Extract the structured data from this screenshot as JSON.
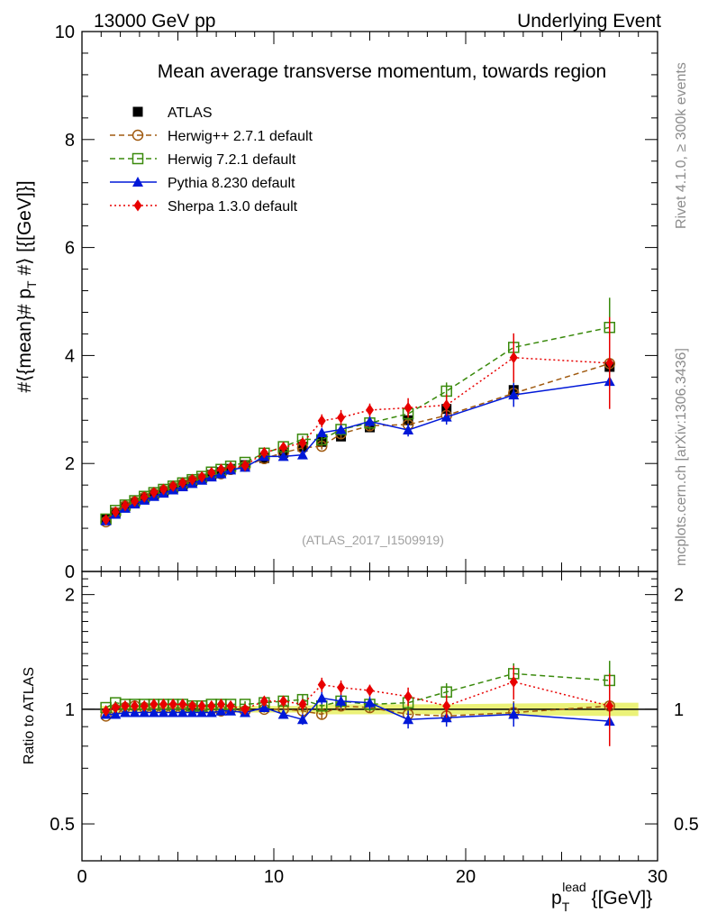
{
  "header": {
    "left": "13000 GeV pp",
    "right": "Underlying Event"
  },
  "side_text": {
    "rivet": "Rivet 4.1.0, ≥ 300k events",
    "site": "mcplots.cern.ch [arXiv:1306.3436]"
  },
  "chart_data": [
    {
      "type": "scatter",
      "panel": "main",
      "title": "Mean average transverse momentum, towards region",
      "xlabel": "p_T^lead [GeV]",
      "ylabel": "#⟨{mean}# p_T #⟩ [GeV]",
      "xlim": [
        0,
        30
      ],
      "ylim": [
        0,
        10
      ],
      "analysis_label": "(ATLAS_2017_I1509919)",
      "legend_position": "top-left",
      "x_ticks": [
        0,
        10,
        20,
        30
      ],
      "y_ticks": [
        0,
        2,
        4,
        6,
        8,
        10
      ],
      "series": [
        {
          "name": "ATLAS",
          "color": "#000000",
          "marker": "filled-square",
          "line": "none",
          "x": [
            1.25,
            1.75,
            2.25,
            2.75,
            3.25,
            3.75,
            4.25,
            4.75,
            5.25,
            5.75,
            6.25,
            6.75,
            7.25,
            7.75,
            8.5,
            9.5,
            10.5,
            11.5,
            12.5,
            13.5,
            15,
            17,
            19,
            22.5,
            27.5
          ],
          "y": [
            0.96,
            1.09,
            1.2,
            1.27,
            1.35,
            1.42,
            1.48,
            1.54,
            1.6,
            1.67,
            1.72,
            1.79,
            1.84,
            1.9,
            1.97,
            2.1,
            2.2,
            2.31,
            2.4,
            2.5,
            2.67,
            2.8,
            3.01,
            3.36,
            3.79
          ],
          "err": [
            0.02,
            0.02,
            0.02,
            0.02,
            0.02,
            0.02,
            0.02,
            0.02,
            0.02,
            0.02,
            0.02,
            0.03,
            0.03,
            0.03,
            0.03,
            0.04,
            0.04,
            0.05,
            0.06,
            0.06,
            0.07,
            0.08,
            0.09,
            0.12,
            0.15
          ]
        },
        {
          "name": "Herwig++ 2.7.1 default",
          "color": "#a05a10",
          "marker": "open-circle",
          "line": "dashed",
          "x": [
            1.25,
            1.75,
            2.25,
            2.75,
            3.25,
            3.75,
            4.25,
            4.75,
            5.25,
            5.75,
            6.25,
            6.75,
            7.25,
            7.75,
            8.5,
            9.5,
            10.5,
            11.5,
            12.5,
            13.5,
            15,
            17,
            19,
            22.5,
            27.5
          ],
          "y": [
            0.92,
            1.09,
            1.21,
            1.29,
            1.37,
            1.44,
            1.5,
            1.56,
            1.62,
            1.68,
            1.72,
            1.79,
            1.81,
            1.89,
            1.95,
            2.09,
            2.2,
            2.29,
            2.32,
            2.55,
            2.7,
            2.72,
            2.89,
            3.3,
            3.85
          ],
          "err": [
            0.01,
            0.01,
            0.01,
            0.01,
            0.01,
            0.01,
            0.02,
            0.02,
            0.02,
            0.02,
            0.02,
            0.02,
            0.02,
            0.02,
            0.03,
            0.03,
            0.04,
            0.05,
            0.06,
            0.08,
            0.08,
            0.1,
            0.13,
            0.25,
            0.3
          ]
        },
        {
          "name": "Herwig 7.2.1 default",
          "color": "#3a8a0c",
          "marker": "open-square",
          "line": "dashed",
          "x": [
            1.25,
            1.75,
            2.25,
            2.75,
            3.25,
            3.75,
            4.25,
            4.75,
            5.25,
            5.75,
            6.25,
            6.75,
            7.25,
            7.75,
            8.5,
            9.5,
            10.5,
            11.5,
            12.5,
            13.5,
            15,
            17,
            19,
            22.5,
            27.5
          ],
          "y": [
            0.97,
            1.13,
            1.23,
            1.31,
            1.39,
            1.46,
            1.52,
            1.58,
            1.64,
            1.7,
            1.76,
            1.84,
            1.89,
            1.95,
            2.02,
            2.19,
            2.31,
            2.45,
            2.44,
            2.63,
            2.75,
            2.92,
            3.34,
            4.15,
            4.52
          ],
          "err": [
            0.01,
            0.01,
            0.01,
            0.01,
            0.01,
            0.01,
            0.02,
            0.02,
            0.02,
            0.02,
            0.02,
            0.02,
            0.02,
            0.03,
            0.03,
            0.04,
            0.05,
            0.06,
            0.07,
            0.08,
            0.1,
            0.12,
            0.16,
            0.25,
            0.55
          ]
        },
        {
          "name": "Pythia 8.230 default",
          "color": "#0018d8",
          "marker": "filled-triangle",
          "line": "solid",
          "x": [
            1.25,
            1.75,
            2.25,
            2.75,
            3.25,
            3.75,
            4.25,
            4.75,
            5.25,
            5.75,
            6.25,
            6.75,
            7.25,
            7.75,
            8.5,
            9.5,
            10.5,
            11.5,
            12.5,
            13.5,
            15,
            17,
            19,
            22.5,
            27.5
          ],
          "y": [
            0.94,
            1.06,
            1.17,
            1.25,
            1.32,
            1.39,
            1.45,
            1.51,
            1.57,
            1.63,
            1.69,
            1.75,
            1.81,
            1.88,
            1.93,
            2.13,
            2.13,
            2.16,
            2.57,
            2.63,
            2.78,
            2.62,
            2.86,
            3.27,
            3.52
          ],
          "err": [
            0.01,
            0.01,
            0.01,
            0.01,
            0.01,
            0.01,
            0.02,
            0.02,
            0.02,
            0.02,
            0.02,
            0.02,
            0.02,
            0.03,
            0.03,
            0.04,
            0.05,
            0.06,
            0.08,
            0.09,
            0.1,
            0.12,
            0.14,
            0.22,
            0.28
          ]
        },
        {
          "name": "Sherpa 1.3.0 default",
          "color": "#e80000",
          "marker": "filled-diamond",
          "line": "dotted",
          "x": [
            1.25,
            1.75,
            2.25,
            2.75,
            3.25,
            3.75,
            4.25,
            4.75,
            5.25,
            5.75,
            6.25,
            6.75,
            7.25,
            7.75,
            8.5,
            9.5,
            10.5,
            11.5,
            12.5,
            13.5,
            15,
            17,
            19,
            22.5,
            27.5
          ],
          "y": [
            0.96,
            1.1,
            1.22,
            1.3,
            1.38,
            1.46,
            1.52,
            1.58,
            1.64,
            1.7,
            1.75,
            1.83,
            1.89,
            1.93,
            1.96,
            2.2,
            2.3,
            2.38,
            2.79,
            2.85,
            2.99,
            3.03,
            3.08,
            3.96,
            3.86
          ],
          "err": [
            0.01,
            0.01,
            0.01,
            0.01,
            0.01,
            0.01,
            0.02,
            0.02,
            0.02,
            0.02,
            0.02,
            0.02,
            0.02,
            0.03,
            0.03,
            0.05,
            0.06,
            0.07,
            0.12,
            0.14,
            0.12,
            0.18,
            0.2,
            0.45,
            0.85
          ]
        }
      ]
    },
    {
      "type": "scatter",
      "panel": "ratio",
      "ylabel": "Ratio to ATLAS",
      "xlim": [
        0,
        30
      ],
      "ylim": [
        0.4,
        2.3
      ],
      "yscale": "log",
      "reference": 1,
      "band_color": "#e8f060",
      "band_rel_unc": [
        0.02,
        0.02,
        0.02,
        0.02,
        0.02,
        0.02,
        0.02,
        0.02,
        0.02,
        0.02,
        0.02,
        0.02,
        0.02,
        0.02,
        0.02,
        0.02,
        0.02,
        0.02,
        0.03,
        0.03,
        0.03,
        0.03,
        0.03,
        0.035,
        0.04
      ],
      "x_ticks": [
        0,
        10,
        20,
        30
      ],
      "y_ticks": [
        0.5,
        1,
        2
      ],
      "series": [
        {
          "name": "Herwig++ 2.7.1 default",
          "values": [
            0.96,
            1.0,
            1.01,
            1.02,
            1.01,
            1.01,
            1.01,
            1.01,
            1.01,
            1.01,
            1.0,
            1.0,
            0.99,
            1.0,
            0.99,
            1.0,
            1.0,
            0.99,
            0.97,
            1.02,
            1.01,
            0.97,
            0.96,
            0.98,
            1.02
          ]
        },
        {
          "name": "Herwig 7.2.1 default",
          "values": [
            1.01,
            1.04,
            1.03,
            1.03,
            1.03,
            1.03,
            1.03,
            1.03,
            1.03,
            1.02,
            1.02,
            1.03,
            1.03,
            1.03,
            1.03,
            1.04,
            1.05,
            1.06,
            1.02,
            1.05,
            1.03,
            1.04,
            1.11,
            1.24,
            1.19
          ]
        },
        {
          "name": "Pythia 8.230 default",
          "values": [
            0.97,
            0.97,
            0.98,
            0.98,
            0.98,
            0.98,
            0.98,
            0.98,
            0.98,
            0.98,
            0.98,
            0.98,
            0.99,
            0.99,
            0.98,
            1.01,
            0.97,
            0.94,
            1.07,
            1.05,
            1.04,
            0.94,
            0.95,
            0.97,
            0.93
          ]
        },
        {
          "name": "Sherpa 1.3.0 default",
          "values": [
            0.99,
            1.01,
            1.02,
            1.02,
            1.02,
            1.03,
            1.03,
            1.03,
            1.03,
            1.02,
            1.02,
            1.02,
            1.03,
            1.02,
            1.0,
            1.05,
            1.05,
            1.03,
            1.16,
            1.14,
            1.12,
            1.08,
            1.02,
            1.18,
            1.02
          ]
        }
      ],
      "ratio_err": [
        [
          0.01,
          0.01,
          0.01,
          0.01,
          0.01,
          0.01,
          0.01,
          0.01,
          0.01,
          0.01,
          0.01,
          0.01,
          0.01,
          0.01,
          0.02,
          0.02,
          0.02,
          0.02,
          0.03,
          0.03,
          0.03,
          0.04,
          0.05,
          0.07,
          0.08
        ],
        [
          0.01,
          0.01,
          0.01,
          0.01,
          0.01,
          0.01,
          0.01,
          0.01,
          0.01,
          0.01,
          0.01,
          0.01,
          0.01,
          0.01,
          0.02,
          0.02,
          0.02,
          0.03,
          0.03,
          0.03,
          0.04,
          0.05,
          0.06,
          0.08,
          0.15
        ],
        [
          0.01,
          0.01,
          0.01,
          0.01,
          0.01,
          0.01,
          0.01,
          0.01,
          0.01,
          0.01,
          0.01,
          0.01,
          0.01,
          0.01,
          0.02,
          0.02,
          0.02,
          0.03,
          0.04,
          0.04,
          0.04,
          0.05,
          0.05,
          0.07,
          0.08
        ],
        [
          0.01,
          0.01,
          0.01,
          0.01,
          0.01,
          0.01,
          0.01,
          0.01,
          0.01,
          0.01,
          0.01,
          0.01,
          0.01,
          0.01,
          0.02,
          0.02,
          0.03,
          0.03,
          0.05,
          0.05,
          0.04,
          0.06,
          0.07,
          0.12,
          0.22
        ]
      ]
    }
  ]
}
